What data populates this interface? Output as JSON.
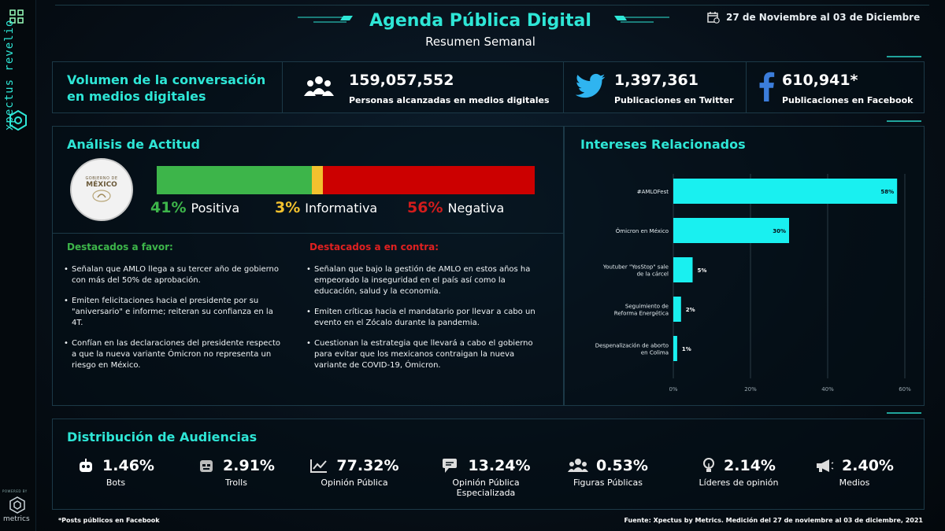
{
  "header": {
    "title": "Agenda Pública Digital",
    "subtitle": "Resumen Semanal",
    "date_range": "27 de Noviembre al 03 de Diciembre"
  },
  "brand": {
    "name": "xpectus revelio",
    "powered": "POWERED BY",
    "metrics": "metrics"
  },
  "volume": {
    "title_line1": "Volumen de la conversación",
    "title_line2": "en medios digitales",
    "people": {
      "value": "159,057,552",
      "label": "Personas alcanzadas en medios digitales",
      "icon": "people-icon"
    },
    "twitter": {
      "value": "1,397,361",
      "label": "Publicaciones en Twitter",
      "icon": "twitter-icon"
    },
    "facebook": {
      "value": "610,941*",
      "label": "Publicaciones en Facebook",
      "icon": "facebook-icon"
    }
  },
  "attitude": {
    "title": "Análisis de Actitud",
    "seal_line1": "GOBIERNO DE",
    "seal_line2": "MÉXICO",
    "positive": {
      "value": 41,
      "text": "41%",
      "label": "Positiva",
      "color": "#3db54a"
    },
    "informative": {
      "value": 3,
      "text": "3%",
      "label": "Informativa",
      "color": "#f2c12e"
    },
    "negative": {
      "value": 56,
      "text": "56%",
      "label": "Negativa",
      "color": "#cc0000"
    },
    "favor_title": "Destacados a favor:",
    "favor": [
      "Señalan que AMLO llega a su tercer año de gobierno con más del 50% de aprobación.",
      "Emiten felicitaciones hacia el presidente por su \"aniversario\" e informe; reiteran su confianza en la 4T.",
      "Confían en las declaraciones del presidente respecto a que la nueva variante Ómicron no representa un riesgo en México."
    ],
    "contra_title": "Destacados a en contra:",
    "contra": [
      "Señalan que bajo la gestión de AMLO en estos años ha empeorado la inseguridad en el país así como la educación, salud y la economía.",
      "Emiten críticas hacia el mandatario por llevar a cabo un evento en el Zócalo durante la pandemia.",
      "Cuestionan la estrategia que llevará a cabo el gobierno para evitar que los mexicanos contraigan la nueva variante de COVID-19, Ómicron."
    ]
  },
  "chart_data": {
    "type": "bar",
    "orientation": "horizontal",
    "title": "Intereses Relacionados",
    "categories": [
      "#AMLOFest",
      "Ómicron en México",
      "Youtuber \"YosStop\" sale de la cárcel",
      "Seguimiento de Reforma Energética",
      "Despenalización de aborto en Colima"
    ],
    "values": [
      58,
      30,
      5,
      2,
      1
    ],
    "value_labels": [
      "58%",
      "30%",
      "5%",
      "2%",
      "1%"
    ],
    "xlim": [
      0,
      60
    ],
    "xticks": [
      "0%",
      "20%",
      "40%",
      "60%"
    ],
    "xtick_values": [
      0,
      20,
      40,
      60
    ],
    "bar_color": "#19f0f0",
    "grid": true
  },
  "audience": {
    "title": "Distribución de Audiencias",
    "items": [
      {
        "value": "1.46%",
        "label": "Bots",
        "icon": "robot-icon"
      },
      {
        "value": "2.91%",
        "label": "Trolls",
        "icon": "troll-icon"
      },
      {
        "value": "77.32%",
        "label": "Opinión Pública",
        "icon": "chart-line-icon"
      },
      {
        "value": "13.24%",
        "label": "Opinión Pública Especializada",
        "icon": "chat-icon"
      },
      {
        "value": "0.53%",
        "label": "Figuras Públicas",
        "icon": "group-icon"
      },
      {
        "value": "2.14%",
        "label": "Líderes de opinión",
        "icon": "bulb-icon"
      },
      {
        "value": "2.40%",
        "label": "Medios",
        "icon": "megaphone-icon"
      }
    ]
  },
  "footer": {
    "note": "*Posts públicos en Facebook",
    "source": "Fuente: Xpectus by Metrics. Medición del 27 de noviembre al 03 de diciembre, 2021"
  }
}
